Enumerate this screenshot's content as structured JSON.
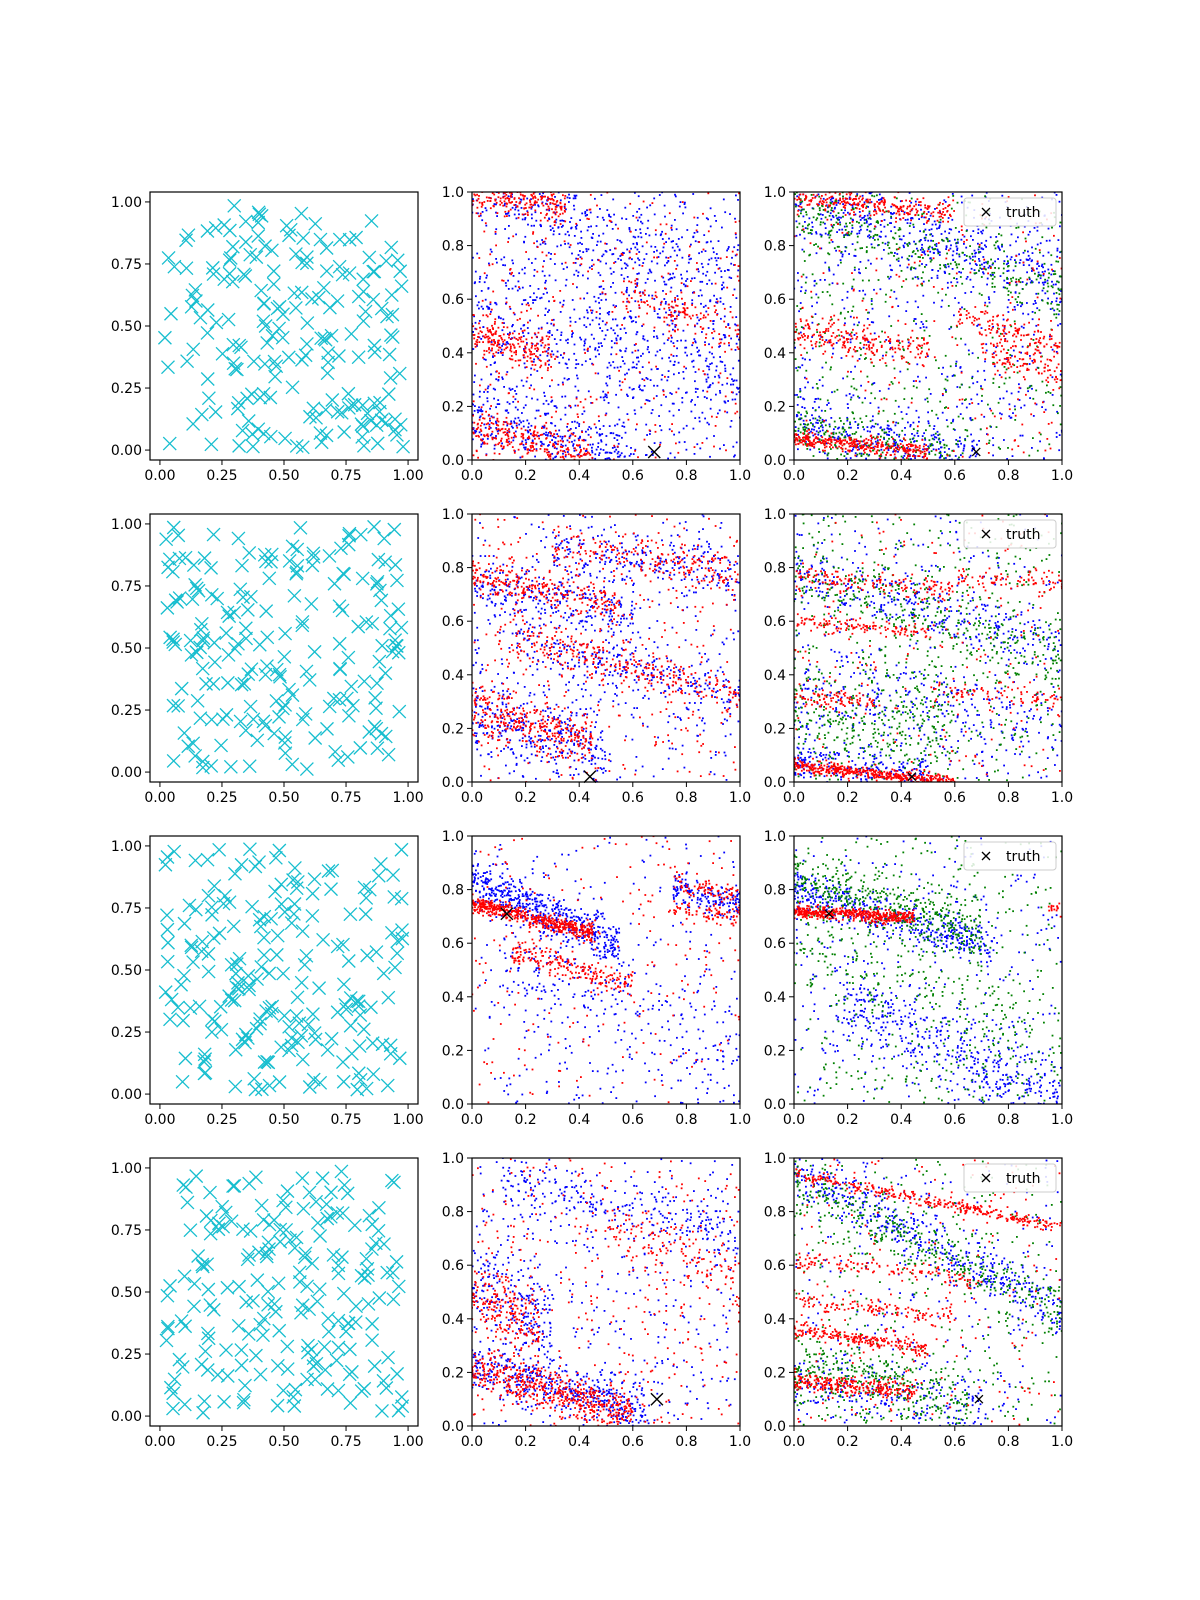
{
  "figure": {
    "layout": "4x3 grid of scatter panels",
    "colors": {
      "cyan": "#17becf",
      "blue": "#0000ff",
      "red": "#ff0000",
      "green": "#008000",
      "black": "#000000",
      "legend_bg": "#ffffff",
      "legend_border": "#cccccc"
    }
  },
  "legend": {
    "label": "truth",
    "marker": "x",
    "placement": "upper right"
  },
  "axes": {
    "left": {
      "ticks": [
        "0.00",
        "0.25",
        "0.50",
        "0.75",
        "1.00"
      ],
      "xlim": [
        -0.04,
        1.04
      ],
      "ylim": [
        -0.04,
        1.04
      ]
    },
    "unit": {
      "ticks": [
        "0.0",
        "0.2",
        "0.4",
        "0.6",
        "0.8",
        "1.0"
      ],
      "xlim": [
        0,
        1
      ],
      "ylim": [
        0,
        1
      ]
    }
  },
  "chart_data": [
    {
      "row": 1,
      "truth": [
        0.68,
        0.03
      ],
      "left": {
        "type": "scatter",
        "marker": "x",
        "color": "cyan",
        "points": 200
      },
      "middle": {
        "type": "scatter",
        "red_bands": [
          {
            "x": [
              0.0,
              0.35
            ],
            "y0": 1.0,
            "slope": -0.15,
            "spread": 0.03,
            "n": 220
          },
          {
            "x": [
              0.0,
              0.3
            ],
            "y0": 0.47,
            "slope": -0.25,
            "spread": 0.04,
            "n": 200
          },
          {
            "x": [
              0.0,
              0.45
            ],
            "y0": 0.12,
            "slope": -0.25,
            "spread": 0.04,
            "n": 260
          },
          {
            "x": [
              0.55,
              1.0
            ],
            "y0": 0.78,
            "slope": -0.3,
            "spread": 0.04,
            "n": 120
          }
        ],
        "blue_bands": [
          {
            "x": [
              0.0,
              1.0
            ],
            "y0": 0.98,
            "slope": -0.3,
            "spread": 0.08,
            "n": 350
          },
          {
            "x": [
              0.0,
              0.6
            ],
            "y0": 0.15,
            "slope": -0.25,
            "spread": 0.06,
            "n": 300
          },
          {
            "x": [
              0.0,
              1.0
            ],
            "y0": 0.55,
            "slope": -0.2,
            "spread": 0.15,
            "n": 500
          }
        ],
        "blue_noise": 500,
        "red_noise": 350
      },
      "right": {
        "type": "scatter",
        "red_bands": [
          {
            "x": [
              0.0,
              0.6
            ],
            "y0": 0.98,
            "slope": -0.1,
            "spread": 0.02,
            "n": 250
          },
          {
            "x": [
              0.0,
              0.5
            ],
            "y0": 0.48,
            "slope": -0.15,
            "spread": 0.03,
            "n": 200
          },
          {
            "x": [
              0.0,
              0.5
            ],
            "y0": 0.08,
            "slope": -0.1,
            "spread": 0.015,
            "n": 320
          },
          {
            "x": [
              0.6,
              1.0
            ],
            "y0": 0.72,
            "slope": -0.3,
            "spread": 0.03,
            "n": 120
          },
          {
            "x": [
              0.7,
              1.0
            ],
            "y0": 0.62,
            "slope": -0.3,
            "spread": 0.03,
            "n": 100
          }
        ],
        "blue_bands": [
          {
            "x": [
              0.0,
              1.0
            ],
            "y0": 0.97,
            "slope": -0.3,
            "spread": 0.07,
            "n": 400
          },
          {
            "x": [
              0.0,
              0.7
            ],
            "y0": 0.14,
            "slope": -0.2,
            "spread": 0.06,
            "n": 300
          }
        ],
        "green_bands": [
          {
            "x": [
              0.0,
              1.0
            ],
            "y0": 0.93,
            "slope": -0.3,
            "spread": 0.06,
            "n": 250
          },
          {
            "x": [
              0.0,
              0.6
            ],
            "y0": 0.12,
            "slope": -0.2,
            "spread": 0.05,
            "n": 200
          }
        ],
        "blue_noise": 550,
        "red_noise": 250,
        "green_noise": 450
      }
    },
    {
      "row": 2,
      "truth": [
        0.44,
        0.02
      ],
      "left": {
        "type": "scatter",
        "marker": "x",
        "color": "cyan",
        "points": 200
      },
      "middle": {
        "type": "scatter",
        "red_bands": [
          {
            "x": [
              0.0,
              0.55
            ],
            "y0": 0.77,
            "slope": -0.2,
            "spread": 0.03,
            "n": 250
          },
          {
            "x": [
              0.0,
              0.45
            ],
            "y0": 0.27,
            "slope": -0.25,
            "spread": 0.05,
            "n": 300
          },
          {
            "x": [
              0.1,
              1.0
            ],
            "y0": 0.58,
            "slope": -0.25,
            "spread": 0.04,
            "n": 280
          },
          {
            "x": [
              0.3,
              1.0
            ],
            "y0": 0.93,
            "slope": -0.15,
            "spread": 0.04,
            "n": 200
          }
        ],
        "blue_bands": [
          {
            "x": [
              0.0,
              0.6
            ],
            "y0": 0.74,
            "slope": -0.2,
            "spread": 0.05,
            "n": 250
          },
          {
            "x": [
              0.0,
              0.5
            ],
            "y0": 0.25,
            "slope": -0.25,
            "spread": 0.07,
            "n": 300
          },
          {
            "x": [
              0.1,
              1.0
            ],
            "y0": 0.57,
            "slope": -0.25,
            "spread": 0.05,
            "n": 250
          },
          {
            "x": [
              0.3,
              1.0
            ],
            "y0": 0.92,
            "slope": -0.15,
            "spread": 0.05,
            "n": 220
          }
        ],
        "blue_noise": 350,
        "red_noise": 350
      },
      "right": {
        "type": "scatter",
        "red_bands": [
          {
            "x": [
              0.0,
              0.6
            ],
            "y0": 0.06,
            "slope": -0.1,
            "spread": 0.012,
            "n": 450
          },
          {
            "x": [
              0.0,
              0.6
            ],
            "y0": 0.77,
            "slope": -0.1,
            "spread": 0.02,
            "n": 140
          },
          {
            "x": [
              0.0,
              0.5
            ],
            "y0": 0.6,
            "slope": -0.08,
            "spread": 0.015,
            "n": 120
          },
          {
            "x": [
              0.0,
              0.3
            ],
            "y0": 0.31,
            "slope": -0.05,
            "spread": 0.02,
            "n": 90
          },
          {
            "x": [
              0.6,
              1.0
            ],
            "y0": 0.79,
            "slope": -0.05,
            "spread": 0.02,
            "n": 80
          },
          {
            "x": [
              0.5,
              1.0
            ],
            "y0": 0.4,
            "slope": -0.1,
            "spread": 0.02,
            "n": 80
          }
        ],
        "blue_bands": [
          {
            "x": [
              0.0,
              1.0
            ],
            "y0": 0.8,
            "slope": -0.3,
            "spread": 0.05,
            "n": 300
          },
          {
            "x": [
              0.0,
              1.0
            ],
            "y0": 0.35,
            "slope": -0.15,
            "spread": 0.08,
            "n": 250
          },
          {
            "x": [
              0.0,
              0.5
            ],
            "y0": 0.08,
            "slope": -0.1,
            "spread": 0.04,
            "n": 200
          }
        ],
        "green_bands": [
          {
            "x": [
              0.0,
              1.0
            ],
            "y0": 0.78,
            "slope": -0.3,
            "spread": 0.06,
            "n": 250
          },
          {
            "x": [
              0.0,
              0.6
            ],
            "y0": 0.25,
            "slope": -0.1,
            "spread": 0.1,
            "n": 250
          }
        ],
        "blue_noise": 300,
        "red_noise": 200,
        "green_noise": 500
      }
    },
    {
      "row": 3,
      "truth": [
        0.13,
        0.71
      ],
      "left": {
        "type": "scatter",
        "marker": "x",
        "color": "cyan",
        "points": 200
      },
      "middle": {
        "type": "scatter",
        "red_bands": [
          {
            "x": [
              0.0,
              0.45
            ],
            "y0": 0.75,
            "slope": -0.25,
            "spread": 0.015,
            "n": 500
          },
          {
            "x": [
              0.15,
              0.6
            ],
            "y0": 0.6,
            "slope": -0.25,
            "spread": 0.025,
            "n": 200
          },
          {
            "x": [
              0.75,
              1.0
            ],
            "y0": 0.8,
            "slope": -0.1,
            "spread": 0.02,
            "n": 80
          },
          {
            "x": [
              0.75,
              1.0
            ],
            "y0": 0.98,
            "slope": -0.2,
            "spread": 0.02,
            "n": 80
          }
        ],
        "blue_bands": [
          {
            "x": [
              0.0,
              0.55
            ],
            "y0": 0.84,
            "slope": -0.45,
            "spread": 0.04,
            "n": 500
          },
          {
            "x": [
              0.75,
              1.0
            ],
            "y0": 0.99,
            "slope": -0.25,
            "spread": 0.03,
            "n": 150
          },
          {
            "x": [
              0.1,
              1.0
            ],
            "y0": 0.6,
            "slope": -0.45,
            "spread": 0.12,
            "n": 250
          }
        ],
        "blue_noise": 250,
        "red_noise": 200
      },
      "right": {
        "type": "scatter",
        "red_bands": [
          {
            "x": [
              0.0,
              0.45
            ],
            "y0": 0.72,
            "slope": -0.05,
            "spread": 0.012,
            "n": 450
          },
          {
            "x": [
              0.95,
              1.0
            ],
            "y0": 0.73,
            "slope": 0.0,
            "spread": 0.01,
            "n": 15
          }
        ],
        "blue_bands": [
          {
            "x": [
              0.0,
              0.75
            ],
            "y0": 0.8,
            "slope": -0.3,
            "spread": 0.04,
            "n": 450
          },
          {
            "x": [
              0.15,
              1.0
            ],
            "y0": 0.47,
            "slope": -0.45,
            "spread": 0.08,
            "n": 450
          }
        ],
        "green_bands": [
          {
            "x": [
              0.0,
              0.7
            ],
            "y0": 0.84,
            "slope": -0.3,
            "spread": 0.05,
            "n": 400
          },
          {
            "x": [
              0.0,
              1.0
            ],
            "y0": 0.62,
            "slope": -0.45,
            "spread": 0.15,
            "n": 250
          }
        ],
        "blue_noise": 300,
        "red_noise": 0,
        "green_noise": 350
      }
    },
    {
      "row": 4,
      "truth": [
        0.69,
        0.1
      ],
      "left": {
        "type": "scatter",
        "marker": "x",
        "color": "cyan",
        "points": 200
      },
      "middle": {
        "type": "scatter",
        "red_bands": [
          {
            "x": [
              0.0,
              0.6
            ],
            "y0": 0.22,
            "slope": -0.3,
            "spread": 0.04,
            "n": 500
          },
          {
            "x": [
              0.0,
              0.25
            ],
            "y0": 0.5,
            "slope": -0.6,
            "spread": 0.07,
            "n": 200
          },
          {
            "x": [
              0.5,
              1.0
            ],
            "y0": 0.95,
            "slope": -0.4,
            "spread": 0.05,
            "n": 120
          }
        ],
        "blue_bands": [
          {
            "x": [
              0.0,
              0.65
            ],
            "y0": 0.22,
            "slope": -0.25,
            "spread": 0.05,
            "n": 450
          },
          {
            "x": [
              0.0,
              0.3
            ],
            "y0": 0.55,
            "slope": -0.6,
            "spread": 0.1,
            "n": 200
          },
          {
            "x": [
              0.1,
              1.0
            ],
            "y0": 0.95,
            "slope": -0.25,
            "spread": 0.05,
            "n": 250
          }
        ],
        "blue_noise": 350,
        "red_noise": 350
      },
      "right": {
        "type": "scatter",
        "red_bands": [
          {
            "x": [
              0.0,
              1.0
            ],
            "y0": 0.94,
            "slope": -0.2,
            "spread": 0.012,
            "n": 300
          },
          {
            "x": [
              0.0,
              0.5
            ],
            "y0": 0.36,
            "slope": -0.15,
            "spread": 0.015,
            "n": 220
          },
          {
            "x": [
              0.0,
              0.45
            ],
            "y0": 0.17,
            "slope": -0.1,
            "spread": 0.02,
            "n": 260
          },
          {
            "x": [
              0.0,
              0.6
            ],
            "y0": 0.47,
            "slope": -0.1,
            "spread": 0.015,
            "n": 120
          },
          {
            "x": [
              0.0,
              0.7
            ],
            "y0": 0.62,
            "slope": -0.1,
            "spread": 0.015,
            "n": 120
          }
        ],
        "blue_bands": [
          {
            "x": [
              0.0,
              1.0
            ],
            "y0": 0.97,
            "slope": -0.55,
            "spread": 0.05,
            "n": 450
          },
          {
            "x": [
              0.0,
              0.7
            ],
            "y0": 0.15,
            "slope": -0.1,
            "spread": 0.06,
            "n": 200
          }
        ],
        "green_bands": [
          {
            "x": [
              0.0,
              1.0
            ],
            "y0": 0.92,
            "slope": -0.5,
            "spread": 0.06,
            "n": 350
          },
          {
            "x": [
              0.0,
              0.65
            ],
            "y0": 0.22,
            "slope": -0.2,
            "spread": 0.06,
            "n": 300
          }
        ],
        "blue_noise": 250,
        "red_noise": 200,
        "green_noise": 350
      }
    }
  ]
}
